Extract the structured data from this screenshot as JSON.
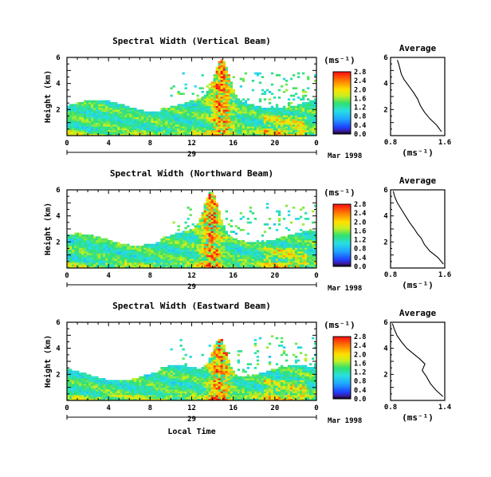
{
  "chart_data": [
    {
      "type": "heatmap",
      "title": "Spectral Width (Vertical Beam)",
      "ylabel": "Height (km)",
      "xlabel": "",
      "xlim": [
        0,
        24
      ],
      "ylim": [
        0,
        6
      ],
      "xticks": [
        "0",
        "4",
        "8",
        "12",
        "16",
        "20",
        "0"
      ],
      "yticks": [
        "2",
        "4",
        "6"
      ],
      "date_day": "29",
      "date_label": "Mar 1998",
      "colorbar": {
        "unit": "(ms⁻¹)",
        "ticks": [
          "0.0",
          "0.4",
          "0.8",
          "1.2",
          "1.6",
          "2.0",
          "2.4",
          "2.8"
        ],
        "range": [
          0,
          2.8
        ]
      },
      "features": {
        "base_top": 2.3,
        "plume_center": 14.9,
        "plume_height": 3.3
      },
      "average": {
        "title": "Average",
        "xlabel": "(ms⁻¹)",
        "xlim": [
          0.8,
          1.6
        ],
        "xticks": [
          "0.8",
          "1.6"
        ],
        "yticks": [
          "2",
          "4",
          "6"
        ],
        "profile": [
          [
            1.55,
            0.3
          ],
          [
            1.48,
            0.8
          ],
          [
            1.38,
            1.3
          ],
          [
            1.3,
            1.8
          ],
          [
            1.24,
            2.3
          ],
          [
            1.2,
            2.8
          ],
          [
            1.14,
            3.3
          ],
          [
            1.07,
            3.8
          ],
          [
            1.0,
            4.3
          ],
          [
            0.96,
            4.7
          ],
          [
            0.94,
            5.1
          ],
          [
            0.92,
            5.5
          ],
          [
            0.9,
            5.8
          ]
        ]
      }
    },
    {
      "type": "heatmap",
      "title": "Spectral Width (Northward Beam)",
      "ylabel": "Height (km)",
      "xlabel": "",
      "xlim": [
        0,
        24
      ],
      "ylim": [
        0,
        6
      ],
      "xticks": [
        "0",
        "4",
        "8",
        "12",
        "16",
        "20",
        "0"
      ],
      "yticks": [
        "2",
        "4",
        "6"
      ],
      "date_day": "29",
      "date_label": "Mar 1998",
      "colorbar": {
        "unit": "(ms⁻¹)",
        "ticks": [
          "0.0",
          "0.4",
          "0.8",
          "1.2",
          "1.6",
          "2.0",
          "2.4",
          "2.8"
        ],
        "range": [
          0,
          2.8
        ]
      },
      "features": {
        "base_top": 2.2,
        "plume_center": 13.9,
        "plume_height": 3.5
      },
      "average": {
        "title": "Average",
        "xlabel": "(ms⁻¹)",
        "xlim": [
          0.8,
          1.6
        ],
        "xticks": [
          "0.8",
          "1.6"
        ],
        "yticks": [
          "2",
          "4",
          "6"
        ],
        "profile": [
          [
            1.58,
            0.3
          ],
          [
            1.5,
            0.8
          ],
          [
            1.38,
            1.3
          ],
          [
            1.3,
            1.8
          ],
          [
            1.25,
            2.3
          ],
          [
            1.2,
            2.6
          ],
          [
            1.15,
            3.0
          ],
          [
            1.08,
            3.5
          ],
          [
            1.02,
            4.0
          ],
          [
            0.96,
            4.5
          ],
          [
            0.9,
            5.0
          ],
          [
            0.86,
            5.5
          ],
          [
            0.84,
            5.9
          ]
        ]
      }
    },
    {
      "type": "heatmap",
      "title": "Spectral Width (Eastward Beam)",
      "ylabel": "Height (km)",
      "xlabel": "Local Time",
      "xlim": [
        0,
        24
      ],
      "ylim": [
        0,
        6
      ],
      "xticks": [
        "0",
        "4",
        "8",
        "12",
        "16",
        "20",
        "0"
      ],
      "yticks": [
        "2",
        "4",
        "6"
      ],
      "date_day": "29",
      "date_label": "Mar 1998",
      "colorbar": {
        "unit": "(ms⁻¹)",
        "ticks": [
          "0.0",
          "0.4",
          "0.8",
          "1.2",
          "1.6",
          "2.0",
          "2.4",
          "2.8"
        ],
        "range": [
          0,
          2.8
        ]
      },
      "features": {
        "base_top": 2.0,
        "plume_center": 14.7,
        "plume_height": 3.2
      },
      "average": {
        "title": "Average",
        "xlabel": "(ms⁻¹)",
        "xlim": [
          0.8,
          1.4
        ],
        "xticks": [
          "0.8",
          "1.4"
        ],
        "yticks": [
          "2",
          "4",
          "6"
        ],
        "profile": [
          [
            1.38,
            0.3
          ],
          [
            1.3,
            0.8
          ],
          [
            1.24,
            1.3
          ],
          [
            1.2,
            1.8
          ],
          [
            1.15,
            2.3
          ],
          [
            1.18,
            2.8
          ],
          [
            1.12,
            3.2
          ],
          [
            1.05,
            3.6
          ],
          [
            0.98,
            4.0
          ],
          [
            0.92,
            4.5
          ],
          [
            0.87,
            5.0
          ],
          [
            0.84,
            5.5
          ],
          [
            0.82,
            5.9
          ]
        ]
      }
    }
  ]
}
